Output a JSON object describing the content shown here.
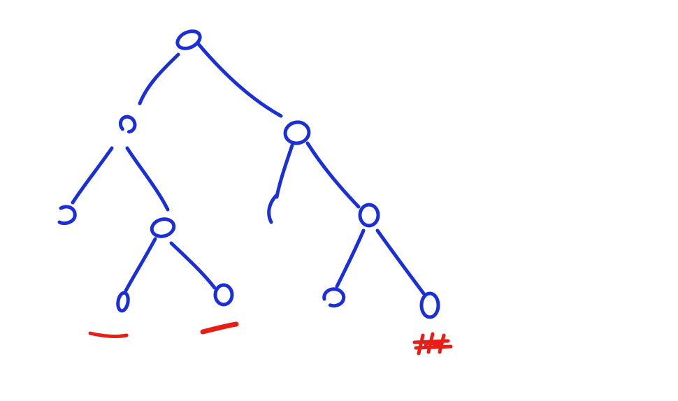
{
  "diagram": {
    "kind": "binary-tree-sketch",
    "ink_color": "#1a2fd8",
    "marker_color": "#e81e16",
    "node_shape": "hand-drawn-circle",
    "nodes": [
      {
        "id": "root",
        "depth": 0
      },
      {
        "id": "left",
        "depth": 1
      },
      {
        "id": "right",
        "depth": 1
      },
      {
        "id": "left-left",
        "depth": 2
      },
      {
        "id": "left-right",
        "depth": 2
      },
      {
        "id": "right-left",
        "depth": 2
      },
      {
        "id": "right-right",
        "depth": 2
      },
      {
        "id": "left-right-left",
        "depth": 3
      },
      {
        "id": "left-right-right",
        "depth": 3
      },
      {
        "id": "right-right-left",
        "depth": 3
      },
      {
        "id": "right-right-right",
        "depth": 3
      }
    ],
    "edges": [
      {
        "from": "root",
        "to": "left"
      },
      {
        "from": "root",
        "to": "right"
      },
      {
        "from": "left",
        "to": "left-left"
      },
      {
        "from": "left",
        "to": "left-right"
      },
      {
        "from": "right",
        "to": "right-left"
      },
      {
        "from": "right",
        "to": "right-right"
      },
      {
        "from": "left-right",
        "to": "left-right-left"
      },
      {
        "from": "left-right",
        "to": "left-right-right"
      },
      {
        "from": "right-right",
        "to": "right-right-left"
      },
      {
        "from": "right-right",
        "to": "right-right-right"
      }
    ],
    "annotations": [
      {
        "under": "left-right-left",
        "style": "dash"
      },
      {
        "under": "left-right-right",
        "style": "dash"
      },
      {
        "under": "right-right-right",
        "style": "scribble"
      }
    ]
  }
}
